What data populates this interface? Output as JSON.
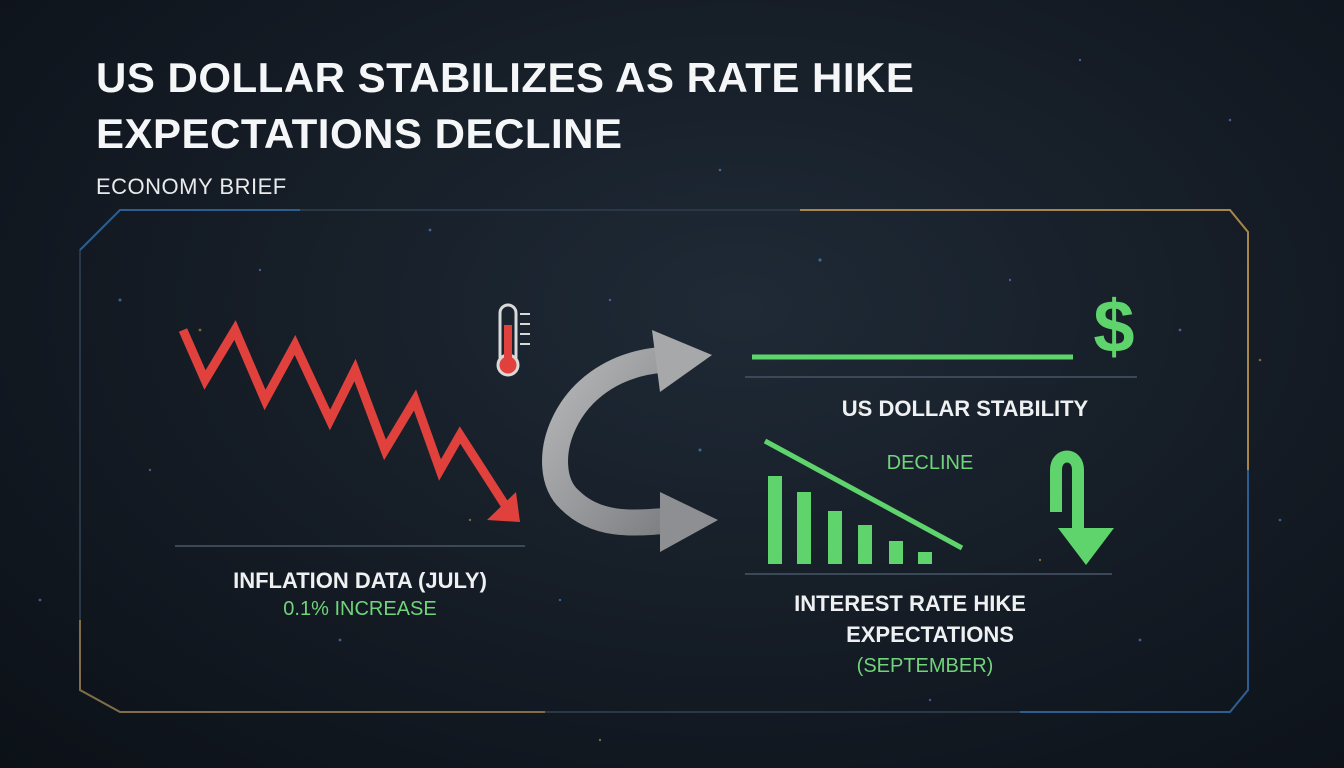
{
  "headline": "US DOLLAR STABILIZES AS RATE HIKE EXPECTATIONS DECLINE",
  "kicker": "ECONOMY BRIEF",
  "inflation": {
    "label": "INFLATION DATA (JULY)",
    "value": "0.1% INCREASE"
  },
  "dollar": {
    "symbol": "$",
    "label": "US DOLLAR STABILITY"
  },
  "rates": {
    "decline_label": "DECLINE",
    "label_line1": "INTEREST RATE HIKE",
    "label_line2": "EXPECTATIONS",
    "period": "(SEPTEMBER)"
  },
  "colors": {
    "red": "#e0413d",
    "green": "#5fd36c",
    "gray_arrow": "#9a9c9e",
    "frame_blue": "#2f6fb0",
    "frame_gold": "#c89a4a"
  },
  "icons": [
    "thermometer-icon",
    "dollar-sign-icon",
    "curved-arrow-icon",
    "down-arrow-icon"
  ]
}
